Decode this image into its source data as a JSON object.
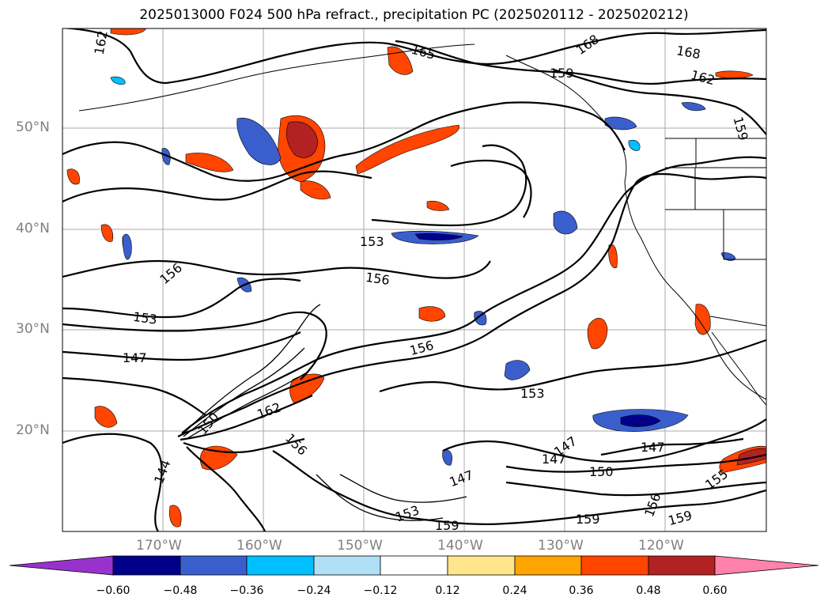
{
  "title": "2025013000 F024 500 hPa refract., precipitation PC (2025020112 - 2025020212)",
  "lat_labels": [
    "50°N",
    "40°N",
    "30°N",
    "20°N"
  ],
  "lon_labels": [
    "170°W",
    "160°W",
    "150°W",
    "140°W",
    "130°W",
    "120°W"
  ],
  "colorbar": {
    "tick_labels": [
      "−0.60",
      "−0.48",
      "−0.36",
      "−0.24",
      "−0.12",
      "0.12",
      "0.24",
      "0.36",
      "0.48",
      "0.60"
    ],
    "colors": [
      "#9932cc",
      "#00008b",
      "#3a5fcd",
      "#00bfff",
      "#b0e0f6",
      "#ffffff",
      "#ffe68c",
      "#ffa500",
      "#ff4500",
      "#b22222",
      "#ff82ab"
    ]
  },
  "contour_labels": [
    "162",
    "165",
    "168",
    "168",
    "162",
    "159",
    "159",
    "153",
    "156",
    "156",
    "153",
    "147",
    "156",
    "162",
    "150",
    "156",
    "153",
    "147",
    "147",
    "147",
    "150",
    "144",
    "155",
    "147",
    "153",
    "159",
    "156",
    "159",
    "159"
  ],
  "colors": {
    "contour": "#000000",
    "positive_fill": "#ff4500",
    "negative_fill": "#3a5fcd",
    "gridline": "#a9a9a9"
  }
}
